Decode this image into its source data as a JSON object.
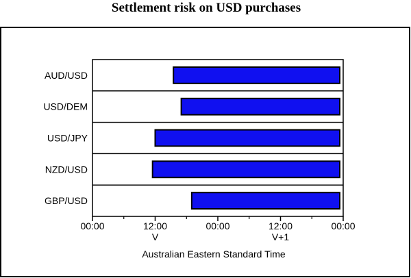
{
  "chart_data": {
    "type": "bar",
    "orientation": "horizontal",
    "title": "Settlement risk on USD purchases",
    "xlabel": "Australian Eastern Standard Time",
    "ylabel": "",
    "categories": [
      "AUD/USD",
      "USD/DEM",
      "USD/JPY",
      "NZD/USD",
      "GBP/USD"
    ],
    "unit": "hours from 00:00 on day V",
    "xlim": [
      0,
      48
    ],
    "ticks": [
      {
        "value": 0,
        "label": "00:00"
      },
      {
        "value": 12,
        "label": "12:00"
      },
      {
        "value": 24,
        "label": "00:00"
      },
      {
        "value": 36,
        "label": "12:00"
      },
      {
        "value": 48,
        "label": "00:00"
      }
    ],
    "minor_ticks": [
      6,
      18,
      30,
      42
    ],
    "day_labels": [
      {
        "value": 12,
        "label": "V"
      },
      {
        "value": 36,
        "label": "V+1"
      }
    ],
    "series": [
      {
        "start": [
          15.5,
          17.0,
          12.0,
          11.5,
          19.0
        ],
        "end": [
          48,
          48,
          48,
          48,
          48
        ]
      }
    ],
    "grid": false,
    "bar_color": "#1010f0"
  }
}
